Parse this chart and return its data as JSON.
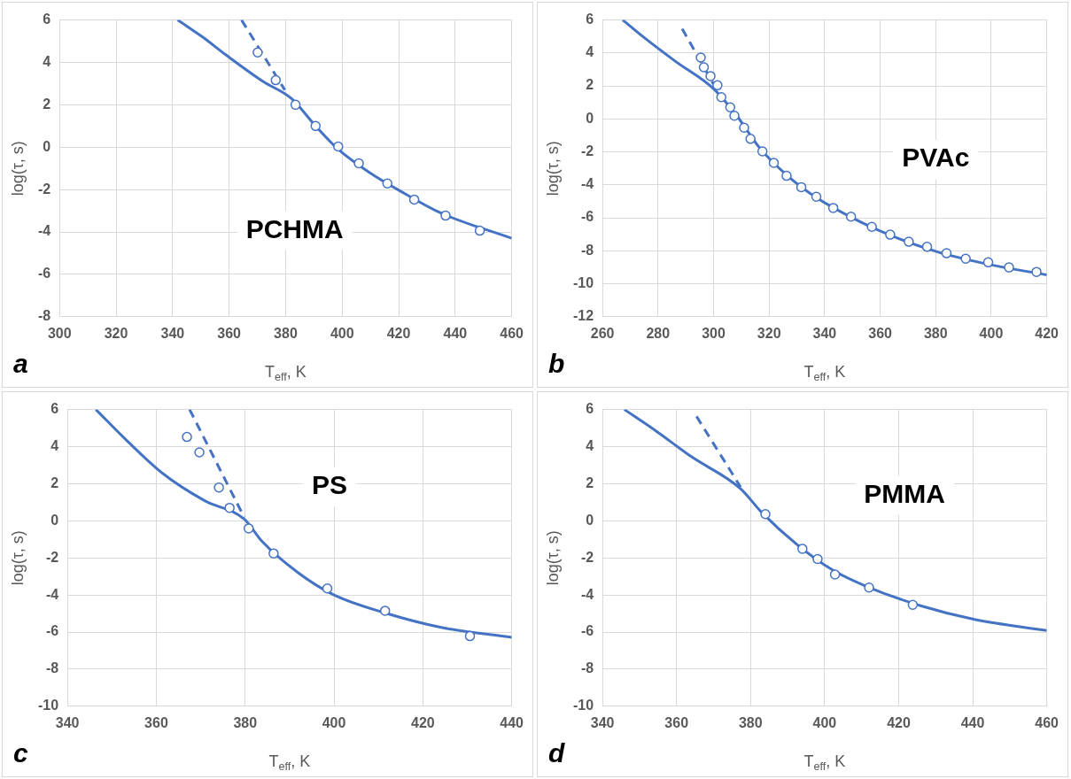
{
  "chart_data": [
    {
      "type": "line",
      "xlabel": "T$_{eff}$, K",
      "ylabel": "log(τ, s)",
      "annotations": [
        "a",
        "PCHMA"
      ],
      "xlim": [
        300,
        460
      ],
      "xticks": [
        300,
        320,
        340,
        360,
        380,
        400,
        420,
        440,
        460
      ],
      "ylim": [
        -8,
        6
      ],
      "yticks": [
        -8,
        -6,
        -4,
        -2,
        0,
        2,
        4,
        6
      ],
      "grid": true,
      "series": [
        {
          "line_style": "solid",
          "color": "#4472c4",
          "x": [
            341.8,
            350.6,
            359.4,
            372,
            382,
            390.6,
            398.6,
            409.7,
            422.3,
            434.8,
            460
          ],
          "values": [
            6,
            5.2,
            4.3,
            3.1,
            2.3,
            1.0,
            -0.1,
            -1.2,
            -2.2,
            -3.1,
            -4.3
          ]
        },
        {
          "line_style": "dashed",
          "color": "#4472c4",
          "x": [
            364.4,
            379.7
          ],
          "values": [
            6.0,
            2.7
          ]
        },
        {
          "type": "scatter",
          "marker": "circle",
          "color": "#4472c4",
          "x": [
            370.1,
            376.5,
            383.5,
            390.6,
            398.6,
            405.9,
            416.0,
            425.5,
            436.6,
            448.7
          ],
          "values": [
            4.47,
            3.16,
            2.0,
            1.0,
            0.03,
            -0.76,
            -1.71,
            -2.47,
            -3.23,
            -3.94
          ]
        }
      ]
    },
    {
      "type": "line",
      "xlabel": "T$_{eff}$, K",
      "ylabel": "log(τ, s)",
      "annotations": [
        "b",
        "PVAc"
      ],
      "xlim": [
        260,
        420
      ],
      "xticks": [
        260,
        280,
        300,
        320,
        340,
        360,
        380,
        400,
        420
      ],
      "ylim": [
        -12,
        6
      ],
      "yticks": [
        -12,
        -10,
        -8,
        -6,
        -4,
        -2,
        0,
        2,
        4,
        6
      ],
      "grid": true,
      "series": [
        {
          "line_style": "solid",
          "color": "#4472c4",
          "x": [
            267.3,
            276,
            286.2,
            300.2,
            307.9,
            316.8,
            327,
            337.3,
            350,
            362.8,
            380.7,
            399.8,
            420
          ],
          "values": [
            6.0,
            4.8,
            3.5,
            1.8,
            0.3,
            -1.8,
            -3.5,
            -4.8,
            -6.0,
            -7.0,
            -8.07,
            -8.85,
            -9.46
          ]
        },
        {
          "line_style": "dashed",
          "color": "#4472c4",
          "x": [
            288.7,
            300.2
          ],
          "values": [
            5.47,
            2.04
          ]
        },
        {
          "type": "scatter",
          "marker": "circle",
          "color": "#4472c4",
          "x": [
            295.4,
            296.5,
            298.9,
            301.4,
            302.8,
            306.0,
            307.5,
            311.0,
            313.3,
            317.6,
            321.7,
            326.3,
            331.6,
            337.0,
            343.1,
            349.5,
            357.0,
            363.6,
            370.3,
            376.9,
            383.9,
            390.8,
            398.9,
            406.4,
            416.3
          ],
          "values": [
            3.72,
            3.13,
            2.6,
            2.04,
            1.32,
            0.7,
            0.19,
            -0.53,
            -1.21,
            -1.97,
            -2.67,
            -3.45,
            -4.14,
            -4.72,
            -5.4,
            -5.93,
            -6.55,
            -7.02,
            -7.45,
            -7.76,
            -8.15,
            -8.48,
            -8.7,
            -9.01,
            -9.28
          ]
        }
      ]
    },
    {
      "type": "line",
      "xlabel": "T$_{eff}$, K",
      "ylabel": "log(τ, s)",
      "annotations": [
        "c",
        "PS"
      ],
      "xlim": [
        340,
        440
      ],
      "xticks": [
        340,
        360,
        380,
        400,
        420,
        440
      ],
      "ylim": [
        -10,
        6
      ],
      "yticks": [
        -10,
        -8,
        -6,
        -4,
        -2,
        0,
        2,
        4,
        6
      ],
      "grid": true,
      "series": [
        {
          "line_style": "solid",
          "color": "#4472c4",
          "x": [
            346.4,
            353.3,
            361.3,
            370.9,
            379.8,
            383.8,
            391.8,
            399.8,
            411.9,
            423.9,
            440
          ],
          "values": [
            6,
            4.34,
            2.58,
            1.08,
            0.09,
            -1.11,
            -2.78,
            -3.98,
            -5.0,
            -5.74,
            -6.29
          ]
        },
        {
          "line_style": "dashed",
          "color": "#4472c4",
          "x": [
            367.5,
            379.8
          ],
          "values": [
            6.0,
            0.18
          ]
        },
        {
          "type": "scatter",
          "marker": "circle",
          "color": "#4472c4",
          "x": [
            366.9,
            369.7,
            374.1,
            376.5,
            380.8,
            386.4,
            398.5,
            411.5,
            430.6
          ],
          "values": [
            4.52,
            3.69,
            1.79,
            0.7,
            -0.41,
            -1.76,
            -3.65,
            -4.85,
            -6.22
          ]
        }
      ]
    },
    {
      "type": "line",
      "xlabel": "T$_{eff}$, K",
      "ylabel": "log(τ, s)",
      "annotations": [
        "d",
        "PMMA"
      ],
      "xlim": [
        340,
        460
      ],
      "xticks": [
        340,
        360,
        380,
        400,
        420,
        440,
        460
      ],
      "ylim": [
        -10,
        6
      ],
      "yticks": [
        -10,
        -8,
        -6,
        -4,
        -2,
        0,
        2,
        4,
        6
      ],
      "grid": true,
      "series": [
        {
          "line_style": "solid",
          "color": "#4472c4",
          "x": [
            345.9,
            354.4,
            363.9,
            377.3,
            383.0,
            392.6,
            402.2,
            411.8,
            426.1,
            440.5,
            460
          ],
          "values": [
            6.0,
            4.85,
            3.47,
            1.73,
            0.45,
            -1.29,
            -2.66,
            -3.58,
            -4.59,
            -5.32,
            -5.92
          ]
        },
        {
          "line_style": "dashed",
          "color": "#4472c4",
          "x": [
            365.4,
            377.3
          ],
          "values": [
            5.63,
            1.82
          ]
        },
        {
          "type": "scatter",
          "marker": "circle",
          "color": "#4472c4",
          "x": [
            384.0,
            394.0,
            398.1,
            402.8,
            412.0,
            423.8
          ],
          "values": [
            0.36,
            -1.51,
            -2.06,
            -2.9,
            -3.6,
            -4.53
          ]
        }
      ]
    }
  ]
}
